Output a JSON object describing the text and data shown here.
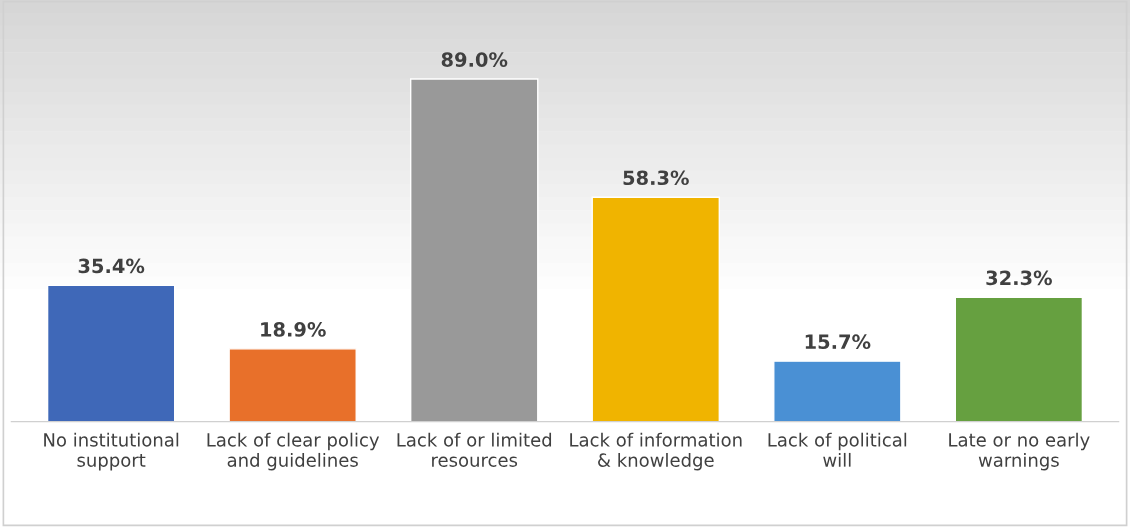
{
  "chart_data": {
    "type": "bar",
    "categories": [
      "No institutional support",
      "Lack of clear policy and guidelines",
      "Lack of or limited resources",
      "Lack of information & knowledge",
      "Lack of political will",
      "Late or no early warnings"
    ],
    "values": [
      35.4,
      18.9,
      89.0,
      58.3,
      15.7,
      32.3
    ],
    "colors": [
      "#3f68b8",
      "#e8702a",
      "#999999",
      "#f0b400",
      "#4a90d4",
      "#66a040"
    ],
    "value_labels": [
      "35.4%",
      "18.9%",
      "89.0%",
      "58.3%",
      "15.7%",
      "32.3%"
    ],
    "grid": false,
    "legend": false
  }
}
